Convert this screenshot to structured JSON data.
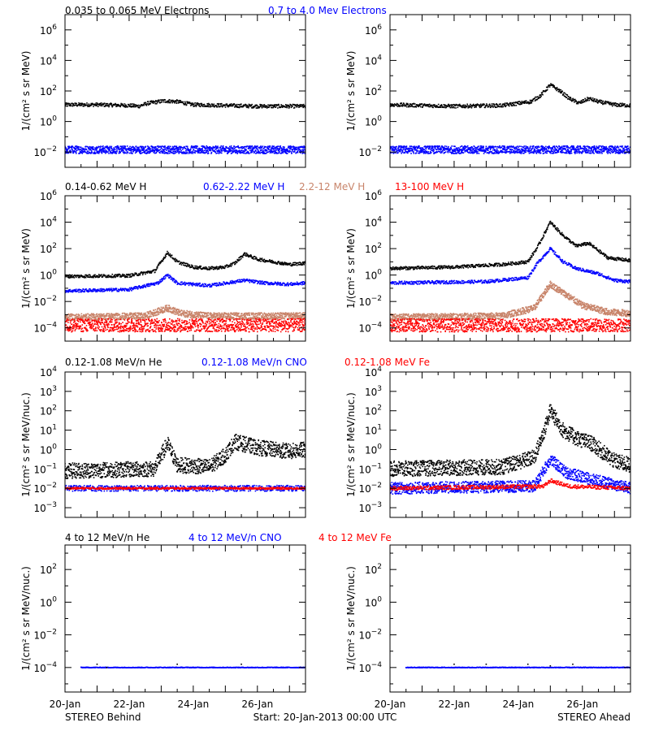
{
  "footer": {
    "left": "STEREO Behind",
    "center": "Start: 20-Jan-2013 00:00 UTC",
    "right": "STEREO Ahead"
  },
  "colors": {
    "black": "#000000",
    "blue": "#0000ff",
    "tan": "#c8846a",
    "red": "#ff0000"
  },
  "x_ticks": [
    "20-Jan",
    "22-Jan",
    "24-Jan",
    "26-Jan"
  ],
  "ylabels": {
    "flux": "1/(cm² s sr MeV)",
    "nuc": "1/(cm² s sr MeV/nuc.)"
  },
  "chart_data": [
    {
      "type": "scatter",
      "row": 1,
      "legend": [
        {
          "text": "0.035 to 0.065 MeV Electrons",
          "color": "#000000"
        },
        {
          "text": "0.7 to 4.0 Mev Electrons",
          "color": "#0000ff"
        }
      ],
      "ylabel": "1/(cm² s sr MeV)",
      "ylog_range": [
        -3,
        7
      ],
      "yticks": [
        -2,
        0,
        2,
        4,
        6
      ],
      "x_range_days": [
        0,
        7.5
      ],
      "panels": [
        {
          "spacecraft": "STEREO Behind",
          "series": [
            {
              "name": "0.035 to 0.065 MeV Electrons",
              "color": "#000000",
              "pts": [
                [
                  0,
                  1.1
                ],
                [
                  1,
                  1.1
                ],
                [
                  2,
                  1.05
                ],
                [
                  2.3,
                  1.0
                ],
                [
                  2.6,
                  1.2
                ],
                [
                  3.1,
                  1.35
                ],
                [
                  3.5,
                  1.3
                ],
                [
                  4,
                  1.1
                ],
                [
                  5,
                  1.05
                ],
                [
                  6,
                  1.0
                ],
                [
                  7,
                  1.0
                ],
                [
                  7.5,
                  1.0
                ]
              ]
            },
            {
              "name": "0.7 to 4.0 Mev Electrons",
              "color": "#0000ff",
              "pts": [
                [
                  0,
                  -1.85
                ],
                [
                  7.5,
                  -1.85
                ]
              ],
              "spread": 0.25
            }
          ]
        },
        {
          "spacecraft": "STEREO Ahead",
          "series": [
            {
              "name": "0.035 to 0.065 MeV Electrons",
              "color": "#000000",
              "pts": [
                [
                  0,
                  1.1
                ],
                [
                  2,
                  1.0
                ],
                [
                  3.5,
                  1.05
                ],
                [
                  4.4,
                  1.3
                ],
                [
                  4.7,
                  1.7
                ],
                [
                  5,
                  2.4
                ],
                [
                  5.3,
                  2.0
                ],
                [
                  5.6,
                  1.5
                ],
                [
                  5.9,
                  1.2
                ],
                [
                  6.2,
                  1.5
                ],
                [
                  6.5,
                  1.3
                ],
                [
                  7,
                  1.1
                ],
                [
                  7.5,
                  1.05
                ]
              ]
            },
            {
              "name": "0.7 to 4.0 Mev Electrons",
              "color": "#0000ff",
              "pts": [
                [
                  0,
                  -1.85
                ],
                [
                  7.5,
                  -1.85
                ]
              ],
              "spread": 0.25
            }
          ]
        }
      ]
    },
    {
      "type": "scatter",
      "row": 2,
      "legend": [
        {
          "text": "0.14-0.62 MeV H",
          "color": "#000000"
        },
        {
          "text": "0.62-2.22 MeV H",
          "color": "#0000ff"
        },
        {
          "text": "2.2-12 MeV H",
          "color": "#c8846a"
        },
        {
          "text": "13-100 MeV H",
          "color": "#ff0000"
        }
      ],
      "ylabel": "1/(cm² s sr MeV)",
      "ylog_range": [
        -5,
        6
      ],
      "yticks": [
        -4,
        -2,
        0,
        2,
        4,
        6
      ],
      "x_range_days": [
        0,
        7.5
      ],
      "panels": [
        {
          "spacecraft": "STEREO Behind",
          "series": [
            {
              "name": "0.14-0.62 MeV H",
              "color": "#000000",
              "pts": [
                [
                  0,
                  -0.1
                ],
                [
                  2,
                  -0.05
                ],
                [
                  2.8,
                  0.3
                ],
                [
                  3.2,
                  1.7
                ],
                [
                  3.5,
                  1.0
                ],
                [
                  4,
                  0.6
                ],
                [
                  4.5,
                  0.5
                ],
                [
                  5,
                  0.6
                ],
                [
                  5.3,
                  0.9
                ],
                [
                  5.6,
                  1.6
                ],
                [
                  6,
                  1.2
                ],
                [
                  7,
                  0.8
                ],
                [
                  7.5,
                  0.9
                ]
              ]
            },
            {
              "name": "0.62-2.22 MeV H",
              "color": "#0000ff",
              "pts": [
                [
                  0,
                  -1.2
                ],
                [
                  2,
                  -1.1
                ],
                [
                  2.9,
                  -0.6
                ],
                [
                  3.2,
                  0.0
                ],
                [
                  3.5,
                  -0.6
                ],
                [
                  4.5,
                  -0.8
                ],
                [
                  5.6,
                  -0.4
                ],
                [
                  6.2,
                  -0.6
                ],
                [
                  7,
                  -0.7
                ],
                [
                  7.5,
                  -0.6
                ]
              ]
            },
            {
              "name": "2.2-12 MeV H",
              "color": "#c8846a",
              "pts": [
                [
                  0,
                  -3.2
                ],
                [
                  2.5,
                  -3.1
                ],
                [
                  3.2,
                  -2.5
                ],
                [
                  3.6,
                  -2.9
                ],
                [
                  4.5,
                  -3.1
                ],
                [
                  7.5,
                  -3.1
                ]
              ],
              "spread": 0.25
            },
            {
              "name": "13-100 MeV H",
              "color": "#ff0000",
              "pts": [
                [
                  0,
                  -3.8
                ],
                [
                  7.5,
                  -3.8
                ]
              ],
              "spread": 0.5
            }
          ]
        },
        {
          "spacecraft": "STEREO Ahead",
          "series": [
            {
              "name": "0.14-0.62 MeV H",
              "color": "#000000",
              "pts": [
                [
                  0,
                  0.5
                ],
                [
                  2,
                  0.6
                ],
                [
                  3.5,
                  0.8
                ],
                [
                  4.3,
                  1.0
                ],
                [
                  4.6,
                  2.1
                ],
                [
                  5,
                  4.0
                ],
                [
                  5.4,
                  3.0
                ],
                [
                  5.8,
                  2.2
                ],
                [
                  6.2,
                  2.4
                ],
                [
                  6.8,
                  1.3
                ],
                [
                  7.5,
                  1.1
                ]
              ]
            },
            {
              "name": "0.62-2.22 MeV H",
              "color": "#0000ff",
              "pts": [
                [
                  0,
                  -0.6
                ],
                [
                  3,
                  -0.5
                ],
                [
                  4.3,
                  -0.2
                ],
                [
                  4.6,
                  0.9
                ],
                [
                  5,
                  2.0
                ],
                [
                  5.4,
                  1.0
                ],
                [
                  5.8,
                  0.5
                ],
                [
                  6.5,
                  0.1
                ],
                [
                  7,
                  -0.4
                ],
                [
                  7.5,
                  -0.5
                ]
              ]
            },
            {
              "name": "2.2-12 MeV H",
              "color": "#c8846a",
              "pts": [
                [
                  0,
                  -3.2
                ],
                [
                  3.5,
                  -3.1
                ],
                [
                  4.5,
                  -2.5
                ],
                [
                  5,
                  -0.7
                ],
                [
                  5.5,
                  -1.5
                ],
                [
                  6,
                  -2.3
                ],
                [
                  6.8,
                  -2.8
                ],
                [
                  7.5,
                  -2.9
                ]
              ],
              "spread": 0.25
            },
            {
              "name": "13-100 MeV H",
              "color": "#ff0000",
              "pts": [
                [
                  0,
                  -3.8
                ],
                [
                  7.5,
                  -3.8
                ]
              ],
              "spread": 0.5
            }
          ]
        }
      ]
    },
    {
      "type": "scatter",
      "row": 3,
      "legend": [
        {
          "text": "0.12-1.08 MeV/n He",
          "color": "#000000"
        },
        {
          "text": "0.12-1.08 MeV/n CNO",
          "color": "#0000ff"
        },
        {
          "text": "0.12-1.08 MeV Fe",
          "color": "#ff0000"
        }
      ],
      "ylabel": "1/(cm² s sr MeV/nuc.)",
      "ylog_range": [
        -3.5,
        4
      ],
      "yticks": [
        -3,
        -2,
        -1,
        0,
        1,
        2,
        3,
        4
      ],
      "x_range_days": [
        0,
        7.5
      ],
      "panels": [
        {
          "spacecraft": "STEREO Behind",
          "series": [
            {
              "name": "0.12-1.08 MeV/n He",
              "color": "#000000",
              "pts": [
                [
                  0,
                  -1.1
                ],
                [
                  2.8,
                  -1.0
                ],
                [
                  3.0,
                  -0.3
                ],
                [
                  3.2,
                  0.3
                ],
                [
                  3.5,
                  -0.8
                ],
                [
                  4.5,
                  -0.9
                ],
                [
                  5.0,
                  -0.3
                ],
                [
                  5.3,
                  0.4
                ],
                [
                  6,
                  0.1
                ],
                [
                  7,
                  -0.1
                ],
                [
                  7.5,
                  0.0
                ]
              ],
              "spread": 0.4
            },
            {
              "name": "0.12-1.08 MeV/n CNO",
              "color": "#0000ff",
              "pts": [
                [
                  0,
                  -2.0
                ],
                [
                  7.5,
                  -2.0
                ]
              ],
              "spread": 0.15
            },
            {
              "name": "0.12-1.08 MeV Fe",
              "color": "#ff0000",
              "pts": [
                [
                  0,
                  -2.0
                ],
                [
                  7.5,
                  -2.0
                ]
              ],
              "spread": 0.05
            }
          ]
        },
        {
          "spacecraft": "STEREO Ahead",
          "series": [
            {
              "name": "0.12-1.08 MeV/n He",
              "color": "#000000",
              "pts": [
                [
                  0,
                  -1.0
                ],
                [
                  3.5,
                  -0.9
                ],
                [
                  4.5,
                  -0.4
                ],
                [
                  4.8,
                  0.9
                ],
                [
                  5.0,
                  2.0
                ],
                [
                  5.4,
                  1.0
                ],
                [
                  5.8,
                  0.6
                ],
                [
                  6.3,
                  0.3
                ],
                [
                  7,
                  -0.6
                ],
                [
                  7.5,
                  -0.8
                ]
              ],
              "spread": 0.4
            },
            {
              "name": "0.12-1.08 MeV/n CNO",
              "color": "#0000ff",
              "pts": [
                [
                  0,
                  -2.0
                ],
                [
                  4.5,
                  -1.9
                ],
                [
                  5.0,
                  -0.5
                ],
                [
                  5.5,
                  -1.2
                ],
                [
                  6.2,
                  -1.5
                ],
                [
                  7.5,
                  -2.0
                ]
              ],
              "spread": 0.3
            },
            {
              "name": "0.12-1.08 MeV Fe",
              "color": "#ff0000",
              "pts": [
                [
                  0,
                  -2.0
                ],
                [
                  4.8,
                  -1.9
                ],
                [
                  5.0,
                  -1.6
                ],
                [
                  5.6,
                  -1.9
                ],
                [
                  7.5,
                  -2.0
                ]
              ],
              "spread": 0.1
            }
          ]
        }
      ]
    },
    {
      "type": "scatter",
      "row": 4,
      "legend": [
        {
          "text": "4 to 12 MeV/n He",
          "color": "#000000"
        },
        {
          "text": "4 to 12 MeV/n CNO",
          "color": "#0000ff"
        },
        {
          "text": "4 to 12 MeV Fe",
          "color": "#ff0000"
        }
      ],
      "ylabel": "1/(cm² s sr MeV/nuc.)",
      "ylog_range": [
        -5.5,
        3.5
      ],
      "yticks": [
        -4,
        -2,
        0,
        2
      ],
      "x_range_days": [
        0,
        7.5
      ],
      "panels": [
        {
          "spacecraft": "STEREO Behind",
          "series": [
            {
              "name": "4 to 12 MeV/n CNO",
              "color": "#0000ff",
              "pts": [
                [
                  0.5,
                  -4.0
                ],
                [
                  7.5,
                  -4.0
                ]
              ],
              "spread": 0.02
            },
            {
              "name": "4 to 12 MeV/n He",
              "color": "#000000",
              "pts": [
                [
                  1.0,
                  -3.8
                ],
                [
                  1.3,
                  -4.0
                ],
                [
                  3.5,
                  -3.8
                ],
                [
                  5.5,
                  -3.8
                ]
              ],
              "spread": 0.1,
              "sparse": true
            }
          ]
        },
        {
          "spacecraft": "STEREO Ahead",
          "series": [
            {
              "name": "4 to 12 MeV/n CNO",
              "color": "#0000ff",
              "pts": [
                [
                  0.5,
                  -4.0
                ],
                [
                  7.5,
                  -4.0
                ]
              ],
              "spread": 0.02
            },
            {
              "name": "4 to 12 MeV/n He",
              "color": "#000000",
              "pts": [
                [
                  2.0,
                  -3.8
                ],
                [
                  3.0,
                  -3.8
                ],
                [
                  4.3,
                  -3.8
                ],
                [
                  5.0,
                  -3.9
                ],
                [
                  5.7,
                  -3.8
                ]
              ],
              "spread": 0.1,
              "sparse": true
            }
          ]
        }
      ]
    }
  ]
}
